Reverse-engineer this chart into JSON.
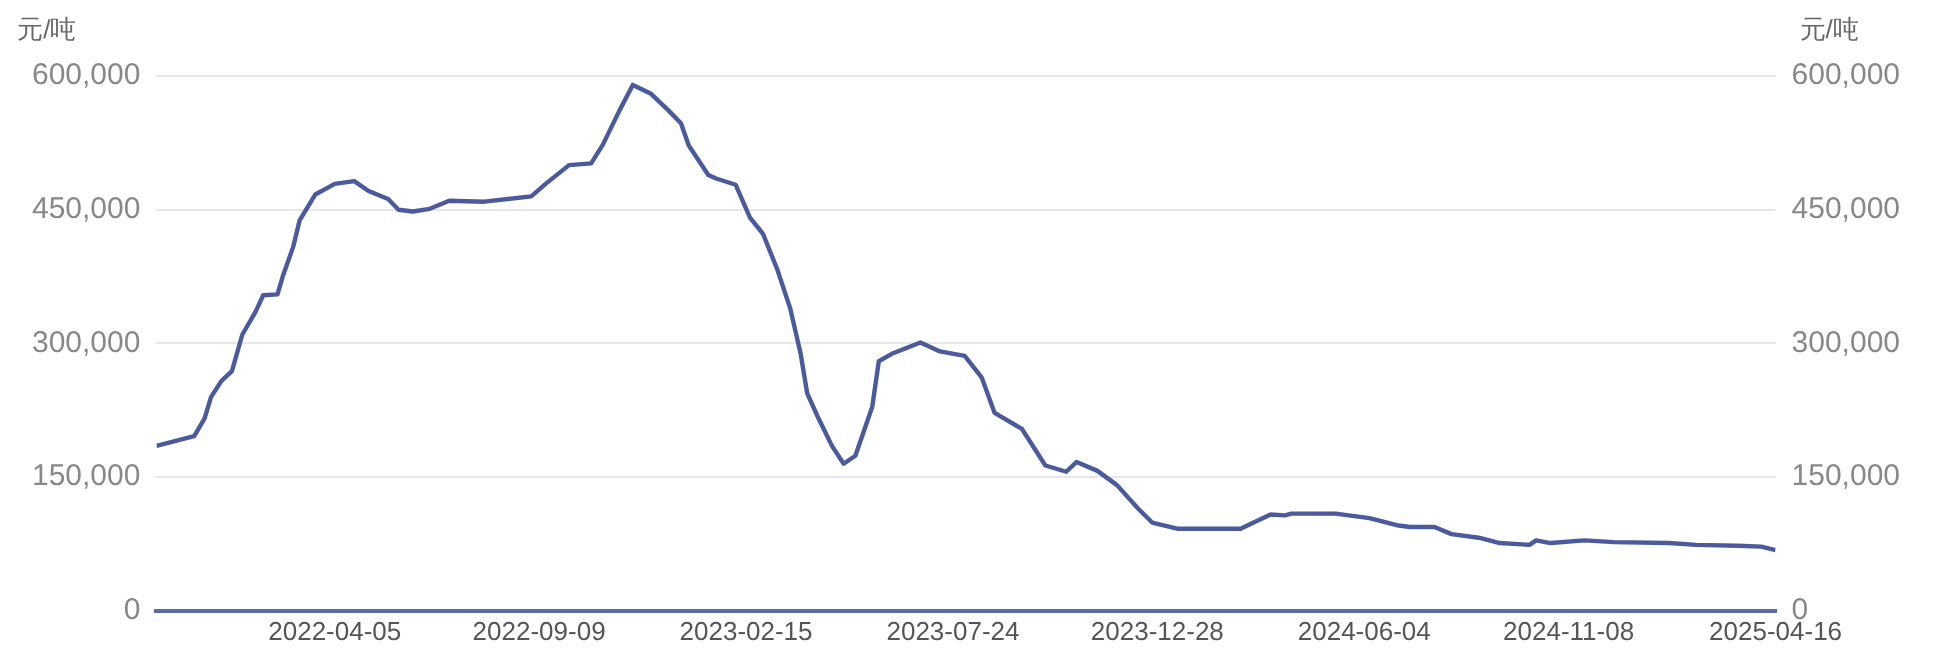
{
  "chart_data": {
    "type": "line",
    "ylabel": "元/吨",
    "y2label": "元/吨",
    "x": [
      "2021-11-19",
      "2021-12-18",
      "2021-12-26",
      "2021-12-31",
      "2022-01-08",
      "2022-01-16",
      "2022-01-24",
      "2022-02-03",
      "2022-02-09",
      "2022-02-20",
      "2022-02-24",
      "2022-03-04",
      "2022-03-09",
      "2022-03-21",
      "2022-04-05",
      "2022-04-20",
      "2022-05-01",
      "2022-05-16",
      "2022-05-24",
      "2022-06-04",
      "2022-06-17",
      "2022-07-02",
      "2022-07-29",
      "2022-09-03",
      "2022-09-14",
      "2022-10-02",
      "2022-10-19",
      "2022-10-28",
      "2022-11-10",
      "2022-11-20",
      "2022-12-04",
      "2022-12-17",
      "2022-12-27",
      "2023-01-02",
      "2023-01-17",
      "2023-01-23",
      "2023-02-07",
      "2023-02-18",
      "2023-02-28",
      "2023-03-11",
      "2023-03-21",
      "2023-03-29",
      "2023-04-03",
      "2023-04-11",
      "2023-04-22",
      "2023-05-01",
      "2023-05-10",
      "2023-05-23",
      "2023-05-28",
      "2023-06-08",
      "2023-06-29",
      "2023-07-14",
      "2023-08-02",
      "2023-08-15",
      "2023-08-25",
      "2023-09-15",
      "2023-10-03",
      "2023-10-19",
      "2023-10-27",
      "2023-11-12",
      "2023-11-27",
      "2023-12-13",
      "2023-12-24",
      "2024-01-13",
      "2024-03-01",
      "2024-03-11",
      "2024-03-24",
      "2024-04-04",
      "2024-04-09",
      "2024-05-13",
      "2024-06-08",
      "2024-06-29",
      "2024-07-09",
      "2024-07-28",
      "2024-08-10",
      "2024-08-31",
      "2024-09-16",
      "2024-10-09",
      "2024-10-14",
      "2024-10-25",
      "2024-11-20",
      "2024-12-13",
      "2025-01-24",
      "2025-02-14",
      "2025-03-18",
      "2025-04-05",
      "2025-04-16"
    ],
    "series": [
      {
        "color": "#4a5a9c",
        "values": [
          185000,
          196000,
          216000,
          240000,
          258000,
          269000,
          310000,
          335000,
          354000,
          355000,
          375000,
          408000,
          438000,
          467000,
          479000,
          482000,
          471000,
          462000,
          450000,
          448000,
          451000,
          460000,
          459000,
          465000,
          479000,
          500000,
          502000,
          523000,
          562000,
          590000,
          580000,
          562000,
          547000,
          522000,
          489000,
          485000,
          478000,
          441000,
          423000,
          383000,
          339000,
          288000,
          244000,
          218000,
          185000,
          165000,
          174000,
          229000,
          280000,
          289000,
          301000,
          291000,
          286000,
          262000,
          222000,
          204000,
          163000,
          156000,
          167000,
          157000,
          141000,
          115000,
          99000,
          92000,
          92000,
          99000,
          108000,
          107000,
          109000,
          109000,
          104000,
          96000,
          94000,
          94000,
          86000,
          82000,
          76000,
          74000,
          79000,
          76000,
          79000,
          77000,
          76000,
          74000,
          73000,
          72000,
          68000
        ]
      }
    ],
    "xlim": [
      "2021-11-19",
      "2025-04-16"
    ],
    "xticks": [
      "2022-04-05",
      "2022-09-09",
      "2023-02-15",
      "2023-07-24",
      "2023-12-28",
      "2024-06-04",
      "2024-11-08",
      "2025-04-16"
    ],
    "ylim": [
      0,
      600000
    ],
    "yticks": [
      {
        "value": 0,
        "label": "0"
      },
      {
        "value": 150000,
        "label": "150,000"
      },
      {
        "value": 300000,
        "label": "300,000"
      },
      {
        "value": 450000,
        "label": "450,000"
      },
      {
        "value": 600000,
        "label": "600,000"
      }
    ],
    "y2lim": [
      0,
      600000
    ],
    "y2ticks": [
      {
        "value": 0,
        "label": "0"
      },
      {
        "value": 150000,
        "label": "150,000"
      },
      {
        "value": 300000,
        "label": "300,000"
      },
      {
        "value": 450000,
        "label": "450,000"
      },
      {
        "value": 600000,
        "label": "600,000"
      }
    ],
    "grid": "y",
    "legend": false,
    "marker": "none",
    "line_style": "solid"
  }
}
